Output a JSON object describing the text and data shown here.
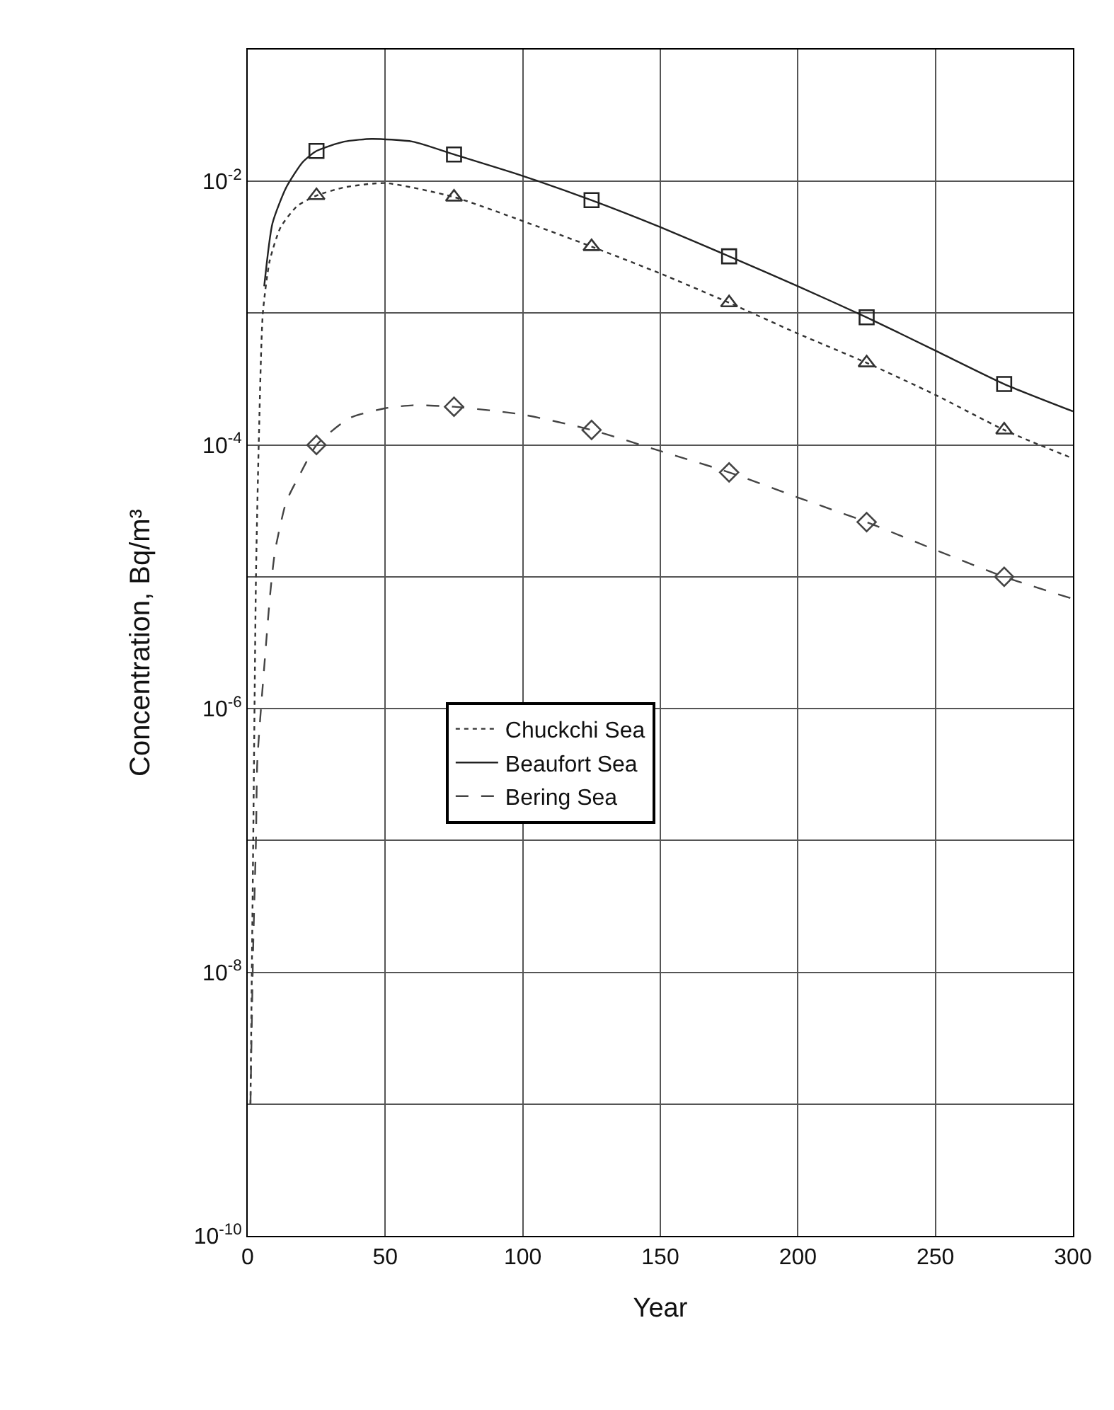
{
  "chart_data": {
    "type": "line",
    "xlabel": "Year",
    "ylabel": "Concentration, Bq/m³",
    "log": "y",
    "grid": true,
    "legend": "center",
    "xlim": [
      0,
      300
    ],
    "xticks": [
      0,
      50,
      100,
      150,
      200,
      250,
      300
    ],
    "ylim": [
      1e-10,
      0.1
    ],
    "yticks": [
      {
        "value": 1e-10,
        "label": "10$^{-10}$"
      },
      {
        "value": 1e-09,
        "label": null
      },
      {
        "value": 1e-08,
        "label": "10$^{-8}$"
      },
      {
        "value": 1e-07,
        "label": null
      },
      {
        "value": 1e-06,
        "label": "10$^{-6}$"
      },
      {
        "value": 1e-05,
        "label": null
      },
      {
        "value": 0.0001,
        "label": "10$^{-4}$"
      },
      {
        "value": 0.001,
        "label": null
      },
      {
        "value": 0.01,
        "label": "10$^{-2}$"
      },
      {
        "value": 0.1,
        "label": null
      }
    ],
    "series": [
      {
        "name": "Chuckchi Sea",
        "color": "#333333",
        "line_style": "dotted",
        "x": [
          1,
          2,
          3,
          4,
          5.5,
          8,
          12,
          18,
          25,
          35,
          50,
          75,
          100,
          125,
          150,
          175,
          200,
          225,
          250,
          275,
          300
        ],
        "values": [
          1e-09,
          1e-07,
          1e-05,
          0.0001,
          0.001,
          0.0025,
          0.0045,
          0.0065,
          0.0078,
          0.009,
          0.0097,
          0.0076,
          0.005,
          0.0032,
          0.002,
          0.0012,
          0.0007,
          0.00042,
          0.00024,
          0.00013,
          7.9e-05
        ]
      },
      {
        "name": "Beaufort Sea",
        "color": "#222222",
        "line_style": "solid",
        "x": [
          6,
          9,
          14,
          20,
          25,
          35,
          45,
          60,
          75,
          100,
          125,
          150,
          175,
          200,
          225,
          250,
          275,
          300
        ],
        "values": [
          0.0016,
          0.0048,
          0.009,
          0.014,
          0.017,
          0.02,
          0.021,
          0.02,
          0.016,
          0.011,
          0.0072,
          0.0045,
          0.0027,
          0.0016,
          0.00093,
          0.00052,
          0.00029,
          0.00018
        ]
      },
      {
        "name": "Bering Sea",
        "color": "#444444",
        "line_style": "dashed",
        "x": [
          1,
          2,
          3,
          3.5,
          6.5,
          8,
          9,
          10,
          14,
          19,
          25,
          37,
          50,
          60,
          75,
          100,
          125,
          150,
          175,
          200,
          225,
          250,
          275,
          300
        ],
        "values": [
          1e-09,
          1.6e-08,
          1e-07,
          4e-07,
          2.8e-06,
          6.8e-06,
          1.1e-05,
          1.6e-05,
          3.7e-05,
          6e-05,
          0.0001,
          0.00016,
          0.00019,
          0.0002,
          0.000195,
          0.00017,
          0.00013,
          9e-05,
          6.2e-05,
          4e-05,
          2.6e-05,
          1.6e-05,
          1e-05,
          6.8e-06
        ]
      },
      {
        "type": "scatter",
        "marker": "triangle",
        "color": "#333333",
        "x": [
          25,
          75,
          125,
          175,
          225,
          275
        ],
        "values": [
          0.0078,
          0.0076,
          0.0032,
          0.0012,
          0.00042,
          0.00013
        ]
      },
      {
        "type": "scatter",
        "marker": "square",
        "color": "#222222",
        "x": [
          25,
          75,
          125,
          175,
          225,
          275
        ],
        "values": [
          0.017,
          0.016,
          0.0072,
          0.0027,
          0.00093,
          0.00029
        ]
      },
      {
        "type": "scatter",
        "marker": "diamond",
        "color": "#444444",
        "x": [
          25,
          75,
          125,
          175,
          225,
          275
        ],
        "values": [
          0.0001,
          0.000195,
          0.00013,
          6.2e-05,
          2.6e-05,
          1e-05
        ]
      }
    ]
  }
}
